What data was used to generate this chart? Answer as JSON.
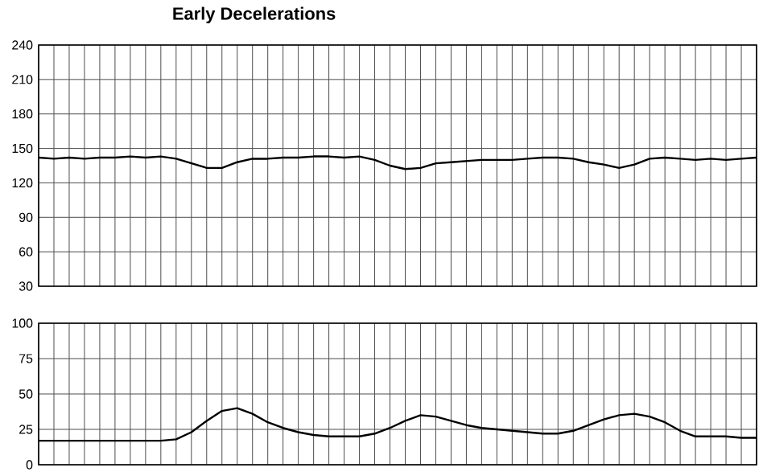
{
  "chart_data": [
    {
      "type": "line",
      "title": "Early Decelerations",
      "categories": [
        null,
        null,
        null,
        null,
        null,
        null,
        null,
        null,
        null,
        null,
        null,
        null,
        null,
        null,
        null,
        null,
        null,
        null,
        null,
        null,
        null,
        null,
        null,
        null,
        null,
        null,
        null,
        null,
        null,
        null,
        null,
        null,
        null,
        null,
        null,
        null,
        null,
        null,
        null,
        null,
        null,
        null,
        null,
        null,
        null,
        null,
        null,
        null
      ],
      "series": [
        {
          "color": "#000000",
          "values": [
            142,
            141,
            142,
            141,
            142,
            142,
            143,
            142,
            143,
            141,
            137,
            133,
            133,
            138,
            141,
            141,
            142,
            142,
            143,
            143,
            142,
            143,
            140,
            135,
            132,
            133,
            137,
            138,
            139,
            140,
            140,
            140,
            141,
            142,
            142,
            141,
            138,
            136,
            133,
            136,
            141,
            142,
            141,
            140,
            141,
            140,
            141,
            142
          ]
        }
      ],
      "ylim": [
        30,
        240
      ],
      "yticks": [
        30,
        60,
        90,
        120,
        150,
        180,
        210,
        240
      ],
      "grid": true,
      "tick_labels": "y"
    },
    {
      "type": "line",
      "categories": [
        null,
        null,
        null,
        null,
        null,
        null,
        null,
        null,
        null,
        null,
        null,
        null,
        null,
        null,
        null,
        null,
        null,
        null,
        null,
        null,
        null,
        null,
        null,
        null,
        null,
        null,
        null,
        null,
        null,
        null,
        null,
        null,
        null,
        null,
        null,
        null,
        null,
        null,
        null,
        null,
        null,
        null,
        null,
        null,
        null,
        null,
        null,
        null
      ],
      "series": [
        {
          "color": "#000000",
          "values": [
            17,
            17,
            17,
            17,
            17,
            17,
            17,
            17,
            17,
            18,
            23,
            31,
            38,
            40,
            36,
            30,
            26,
            23,
            21,
            20,
            20,
            20,
            22,
            26,
            31,
            35,
            34,
            31,
            28,
            26,
            25,
            24,
            23,
            22,
            22,
            24,
            28,
            32,
            35,
            36,
            34,
            30,
            24,
            20,
            20,
            20,
            19,
            19
          ]
        }
      ],
      "ylim": [
        0,
        100
      ],
      "yticks": [
        0,
        25,
        50,
        75,
        100
      ],
      "grid": true,
      "tick_labels": "y"
    }
  ]
}
